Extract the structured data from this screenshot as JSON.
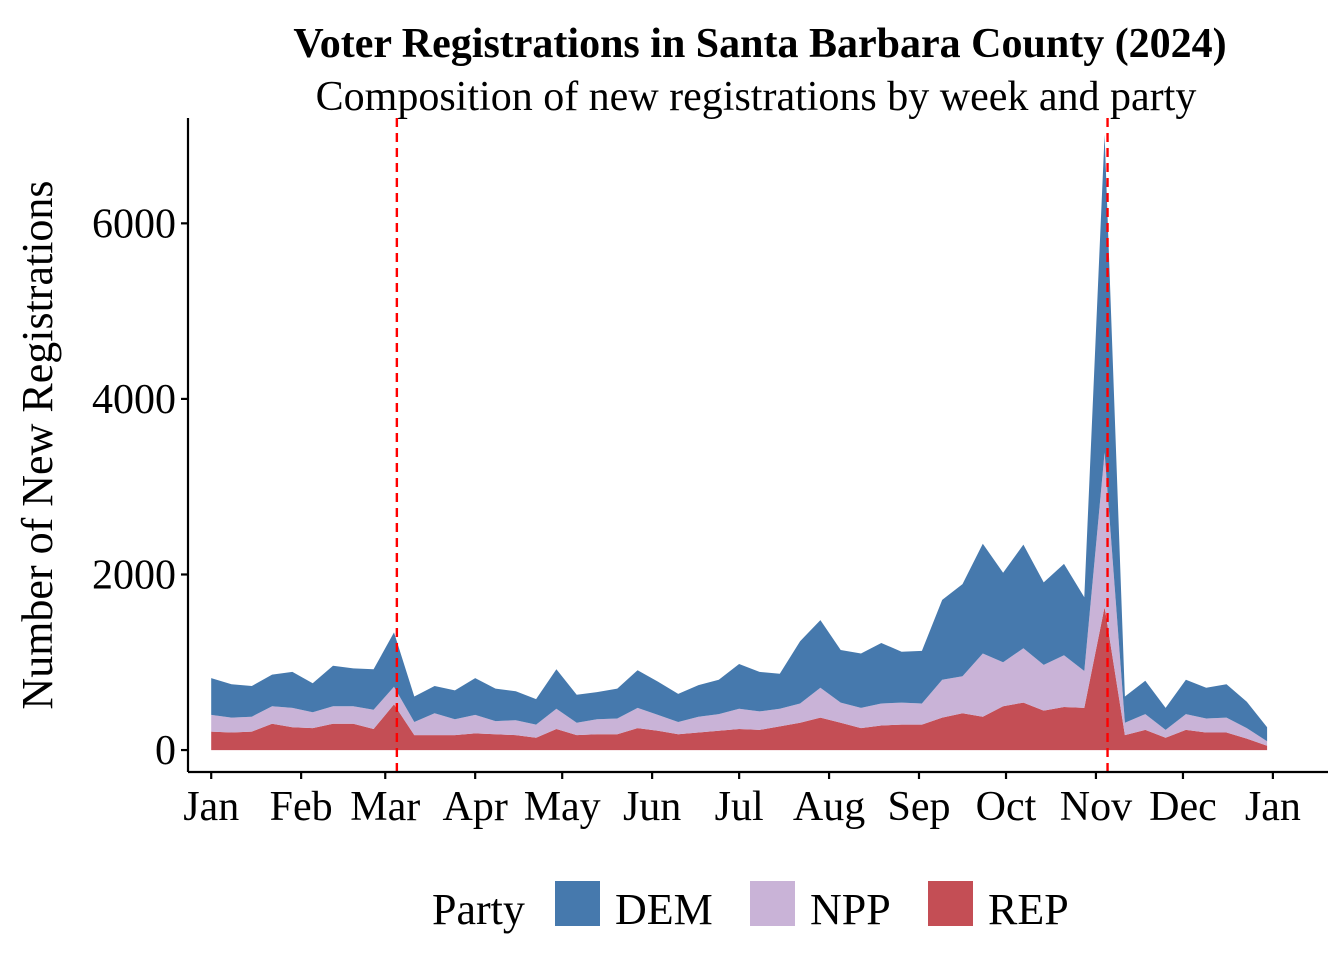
{
  "chart_data": {
    "type": "area",
    "stacked": true,
    "title": "Voter Registrations in Santa Barbara County (2024)",
    "subtitle": "Composition of new registrations by week and party",
    "xlabel": "",
    "ylabel": "Number of New Registrations",
    "x_axis": "date",
    "xlim": [
      "2024-01-01",
      "2025-01-12"
    ],
    "ylim": [
      -250,
      7200
    ],
    "y_ticks": [
      0,
      2000,
      4000,
      6000
    ],
    "x_ticks": [
      {
        "date": "2024-01-01",
        "label": "Jan"
      },
      {
        "date": "2024-02-01",
        "label": "Feb"
      },
      {
        "date": "2024-03-01",
        "label": "Mar"
      },
      {
        "date": "2024-04-01",
        "label": "Apr"
      },
      {
        "date": "2024-05-01",
        "label": "May"
      },
      {
        "date": "2024-06-01",
        "label": "Jun"
      },
      {
        "date": "2024-07-01",
        "label": "Jul"
      },
      {
        "date": "2024-08-01",
        "label": "Aug"
      },
      {
        "date": "2024-09-01",
        "label": "Sep"
      },
      {
        "date": "2024-10-01",
        "label": "Oct"
      },
      {
        "date": "2024-11-01",
        "label": "Nov"
      },
      {
        "date": "2024-12-01",
        "label": "Dec"
      },
      {
        "date": "2025-01-01",
        "label": "Jan"
      }
    ],
    "vlines": [
      {
        "date": "2024-03-05",
        "color": "#ff0000",
        "style": "dashed"
      },
      {
        "date": "2024-11-05",
        "color": "#ff0000",
        "style": "dashed"
      }
    ],
    "grid": false,
    "legend": {
      "title": "Party",
      "position": "bottom"
    },
    "x": [
      "2024-01-01",
      "2024-01-08",
      "2024-01-15",
      "2024-01-22",
      "2024-01-29",
      "2024-02-05",
      "2024-02-12",
      "2024-02-19",
      "2024-02-26",
      "2024-03-04",
      "2024-03-11",
      "2024-03-18",
      "2024-03-25",
      "2024-04-01",
      "2024-04-08",
      "2024-04-15",
      "2024-04-22",
      "2024-04-29",
      "2024-05-06",
      "2024-05-13",
      "2024-05-20",
      "2024-05-27",
      "2024-06-03",
      "2024-06-10",
      "2024-06-17",
      "2024-06-24",
      "2024-07-01",
      "2024-07-08",
      "2024-07-15",
      "2024-07-22",
      "2024-07-29",
      "2024-08-05",
      "2024-08-12",
      "2024-08-19",
      "2024-08-26",
      "2024-09-02",
      "2024-09-09",
      "2024-09-16",
      "2024-09-23",
      "2024-09-30",
      "2024-10-07",
      "2024-10-14",
      "2024-10-21",
      "2024-10-28",
      "2024-11-04",
      "2024-11-11",
      "2024-11-18",
      "2024-11-25",
      "2024-12-02",
      "2024-12-09",
      "2024-12-16",
      "2024-12-23",
      "2024-12-30"
    ],
    "series": [
      {
        "name": "REP",
        "color": "#C44E55",
        "values": [
          210,
          200,
          210,
          300,
          260,
          250,
          300,
          300,
          240,
          520,
          170,
          170,
          170,
          190,
          180,
          170,
          140,
          240,
          170,
          180,
          180,
          250,
          220,
          180,
          200,
          220,
          240,
          230,
          270,
          310,
          370,
          310,
          250,
          280,
          290,
          290,
          370,
          420,
          380,
          500,
          540,
          450,
          490,
          480,
          1630,
          170,
          230,
          140,
          230,
          200,
          200,
          130,
          50
        ]
      },
      {
        "name": "NPP",
        "color": "#C9B3D7",
        "values": [
          190,
          170,
          170,
          200,
          220,
          180,
          200,
          200,
          220,
          200,
          150,
          250,
          180,
          210,
          150,
          170,
          150,
          230,
          140,
          170,
          180,
          230,
          180,
          140,
          180,
          190,
          230,
          210,
          200,
          220,
          340,
          230,
          230,
          250,
          250,
          240,
          430,
          420,
          720,
          500,
          620,
          520,
          590,
          420,
          1760,
          140,
          180,
          90,
          180,
          160,
          170,
          120,
          50
        ]
      },
      {
        "name": "DEM",
        "color": "#4679AD",
        "values": [
          420,
          380,
          350,
          360,
          410,
          330,
          460,
          430,
          460,
          620,
          290,
          310,
          330,
          420,
          370,
          330,
          290,
          450,
          320,
          310,
          340,
          430,
          380,
          320,
          360,
          390,
          510,
          450,
          400,
          710,
          770,
          600,
          620,
          690,
          580,
          600,
          910,
          1050,
          1250,
          1020,
          1180,
          940,
          1040,
          840,
          3620,
          300,
          380,
          250,
          390,
          350,
          380,
          300,
          160
        ]
      }
    ]
  }
}
